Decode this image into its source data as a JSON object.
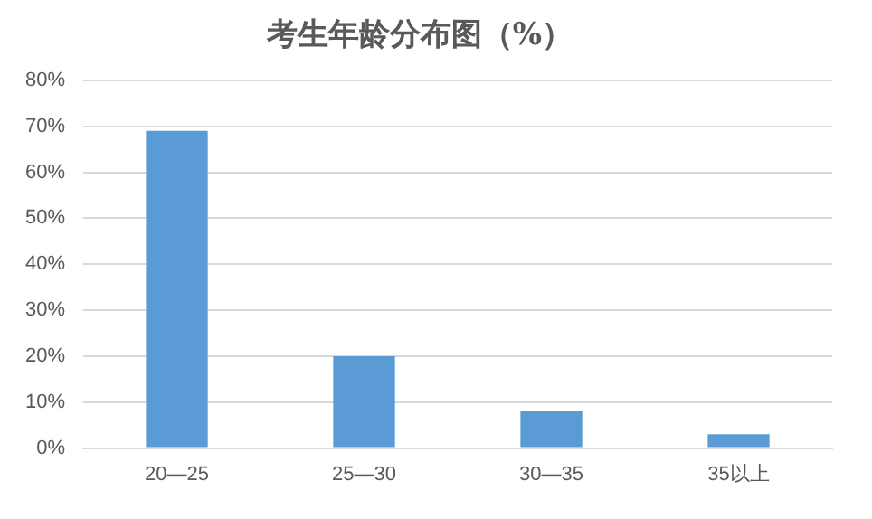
{
  "chart_data": {
    "type": "bar",
    "title": "考生年龄分布图（%）",
    "categories": [
      "20—25",
      "25—30",
      "30—35",
      "35以上"
    ],
    "values": [
      69,
      20,
      8,
      3
    ],
    "color": "#5b9bd5",
    "ylim": [
      0,
      80
    ],
    "yticks": [
      {
        "value": 0,
        "label": "0%"
      },
      {
        "value": 10,
        "label": "10%"
      },
      {
        "value": 20,
        "label": "20%"
      },
      {
        "value": 30,
        "label": "30%"
      },
      {
        "value": 40,
        "label": "40%"
      },
      {
        "value": 50,
        "label": "50%"
      },
      {
        "value": 60,
        "label": "60%"
      },
      {
        "value": 70,
        "label": "70%"
      },
      {
        "value": 80,
        "label": "80%"
      }
    ],
    "grid": "y"
  }
}
